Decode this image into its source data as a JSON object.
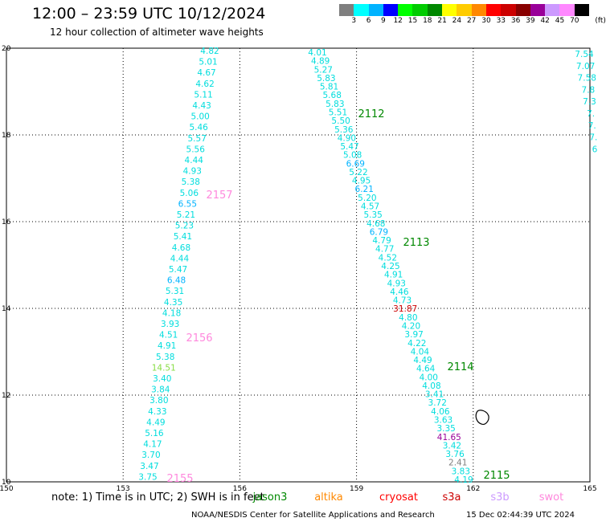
{
  "header": {
    "title": "12:00 – 23:59 UTC 10/12/2024",
    "subtitle": "12 hour collection of altimeter wave heights"
  },
  "legend": {
    "unit": "(ft)",
    "bins": [
      {
        "label": "3",
        "color": "#7f7f7f"
      },
      {
        "label": "6",
        "color": "#00ffff"
      },
      {
        "label": "9",
        "color": "#00b3ff"
      },
      {
        "label": "12",
        "color": "#0000ff"
      },
      {
        "label": "15",
        "color": "#00ff00"
      },
      {
        "label": "18",
        "color": "#00cc00"
      },
      {
        "label": "21",
        "color": "#008800"
      },
      {
        "label": "24",
        "color": "#ffff00"
      },
      {
        "label": "27",
        "color": "#ffcc00"
      },
      {
        "label": "30",
        "color": "#ff8800"
      },
      {
        "label": "33",
        "color": "#ff0000"
      },
      {
        "label": "36",
        "color": "#cc0000"
      },
      {
        "label": "39",
        "color": "#880000"
      },
      {
        "label": "42",
        "color": "#990099"
      },
      {
        "label": "45",
        "color": "#cc99ff"
      },
      {
        "label": "70",
        "color": "#ff88ff"
      },
      {
        "label": "",
        "color": "#000000"
      }
    ]
  },
  "map": {
    "x_ticks": [
      "150",
      "153",
      "156",
      "159",
      "162",
      "165"
    ],
    "y_ticks": [
      "20",
      "18",
      "16",
      "14",
      "12",
      "10"
    ],
    "lon_range": [
      150,
      165
    ],
    "lat_range": [
      10,
      20
    ]
  },
  "tracks": [
    {
      "label": "2157",
      "color": "#ff88dd"
    },
    {
      "label": "2156",
      "color": "#ff88dd"
    },
    {
      "label": "2155",
      "color": "#ff88dd"
    },
    {
      "label": "2112",
      "color": "#008800"
    },
    {
      "label": "2113",
      "color": "#008800"
    },
    {
      "label": "2114",
      "color": "#008800"
    },
    {
      "label": "2115",
      "color": "#008800"
    }
  ],
  "track_a": [
    "4.82",
    "5.01",
    "4.67",
    "4.62",
    "5.11",
    "4.43",
    "5.00",
    "5.46",
    "5.57",
    "5.56",
    "4.44",
    "4.93",
    "5.38",
    "5.06",
    "6.55",
    "5.21",
    "5.23",
    "5.41",
    "4.68",
    "4.44",
    "5.47",
    "6.48",
    "5.31",
    "4.35",
    "4.18",
    "3.93",
    "4.51",
    "4.91",
    "5.38",
    "14.51",
    "3.40",
    "3.84",
    "3.80",
    "4.33",
    "4.49",
    "5.16",
    "4.17",
    "3.70",
    "3.47",
    "3.75"
  ],
  "track_a_colors": {
    "14.51": "#88dd44",
    "6.55": "#00b3ff",
    "6.48": "#00b3ff"
  },
  "track_b": [
    "4.01",
    "4.89",
    "5.27",
    "5.83",
    "5.81",
    "5.68",
    "5.83",
    "5.51",
    "5.50",
    "5.36",
    "4.90",
    "5.47",
    "5.08",
    "6.69",
    "5.22",
    "4.95",
    "6.21",
    "5.20",
    "4.57",
    "5.35",
    "4.68",
    "6.79",
    "4.79",
    "4.77",
    "4.52",
    "4.25",
    "4.91",
    "4.93",
    "4.46",
    "4.73",
    "31.87",
    "4.80",
    "4.20",
    "3.97",
    "4.22",
    "4.04",
    "4.49",
    "4.64",
    "4.00",
    "4.08",
    "3.41",
    "3.72",
    "4.06",
    "3.63",
    "3.35",
    "41.65",
    "3.42",
    "3.76",
    "2.41",
    "3.83",
    "4.19"
  ],
  "track_b_colors": {
    "31.87": "#cc0000",
    "41.65": "#990099",
    "2.41": "#7f7f7f",
    "6.69": "#00b3ff",
    "6.21": "#00b3ff",
    "6.79": "#00b3ff"
  },
  "track_c": [
    "7.54",
    "7.07",
    "7.58",
    "7.8",
    "7.3",
    "7.",
    "7.",
    "7.",
    "6"
  ],
  "footer": {
    "note": "note:  1) Time is in UTC;  2) SWH is in feet",
    "satellites": [
      {
        "name": "jason3",
        "color": "#008800"
      },
      {
        "name": "altika",
        "color": "#ff8800"
      },
      {
        "name": "cryosat",
        "color": "#ff0000"
      },
      {
        "name": "s3a",
        "color": "#cc0000"
      },
      {
        "name": "s3b",
        "color": "#cc99ff"
      },
      {
        "name": "swot",
        "color": "#ff88dd"
      }
    ],
    "credit": "NOAA/NESDIS Center for Satellite Applications and Research",
    "stamp": "15 Dec 02:44:39 UTC 2024"
  }
}
